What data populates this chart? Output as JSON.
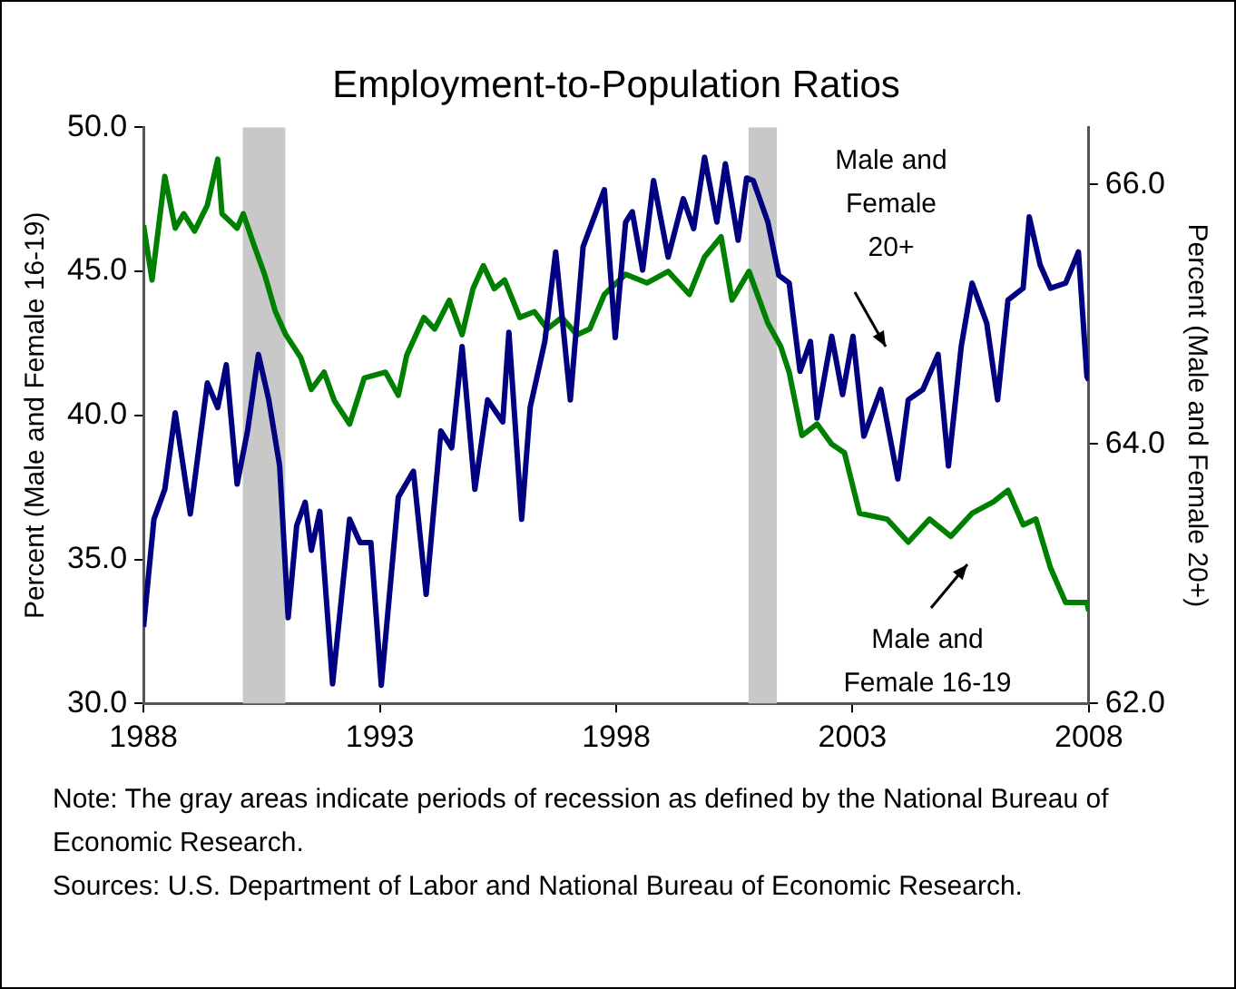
{
  "chart_data": {
    "type": "line",
    "title": "Employment-to-Population Ratios",
    "ylabel": "Percent (Male and Female 16-19)",
    "y2label": "Percent (Male and Female 20+)",
    "xlim": [
      1988,
      2008
    ],
    "xticks": [
      1988,
      1993,
      1998,
      2003,
      2008
    ],
    "ylim": [
      30,
      50
    ],
    "yticks": [
      {
        "value": 30,
        "label": "30.0"
      },
      {
        "value": 35,
        "label": "35.0"
      },
      {
        "value": 40,
        "label": "40.0"
      },
      {
        "value": 45,
        "label": "45.0"
      },
      {
        "value": 50,
        "label": "50.0"
      }
    ],
    "y2lim": [
      62,
      66.44
    ],
    "y2ticks": [
      {
        "value": 62,
        "label": "62.0"
      },
      {
        "value": 64,
        "label": "64.0"
      },
      {
        "value": 66,
        "label": "66.0"
      }
    ],
    "grid": false,
    "legend": false,
    "marker": "none",
    "line_style": "solid",
    "bands": [
      {
        "axis": "x",
        "from": 1990.1,
        "to": 1991.0,
        "color": "#c8c8c8"
      },
      {
        "axis": "x",
        "from": 2000.8,
        "to": 2001.4,
        "color": "#c8c8c8"
      }
    ],
    "series": [
      {
        "name": "Male and\nFemale\n20+",
        "color": "#000080",
        "axis": "y2",
        "x": [
          1988,
          1988.22,
          1988.45,
          1988.67,
          1988.99,
          1989.35,
          1989.57,
          1989.75,
          1989.98,
          1990.2,
          1990.43,
          1990.65,
          1990.88,
          1991.06,
          1991.24,
          1991.42,
          1991.55,
          1991.73,
          1992.0,
          1992.36,
          1992.58,
          1992.81,
          1993.03,
          1993.39,
          1993.71,
          1993.98,
          1994.29,
          1994.52,
          1994.74,
          1995.01,
          1995.28,
          1995.6,
          1995.73,
          1996.0,
          1996.18,
          1996.49,
          1996.72,
          1997.03,
          1997.3,
          1997.75,
          1997.98,
          1998.2,
          1998.34,
          1998.56,
          1998.79,
          1999.1,
          1999.42,
          1999.64,
          1999.87,
          2000.13,
          2000.31,
          2000.58,
          2000.76,
          2000.9,
          2001.21,
          2001.44,
          2001.66,
          2001.89,
          2002.11,
          2002.25,
          2002.56,
          2002.79,
          2003.01,
          2003.24,
          2003.6,
          2003.96,
          2004.18,
          2004.49,
          2004.81,
          2005.03,
          2005.3,
          2005.53,
          2005.84,
          2006.07,
          2006.29,
          2006.61,
          2006.74,
          2006.97,
          2007.19,
          2007.51,
          2007.78,
          2007.96,
          2008.0
        ],
        "values": [
          62.59,
          63.42,
          63.65,
          64.24,
          63.46,
          64.47,
          64.28,
          64.61,
          63.69,
          64.1,
          64.69,
          64.34,
          63.83,
          62.66,
          63.37,
          63.55,
          63.18,
          63.48,
          62.15,
          63.42,
          63.24,
          63.24,
          62.14,
          63.59,
          63.79,
          62.84,
          64.1,
          63.97,
          64.75,
          63.65,
          64.34,
          64.17,
          64.86,
          63.42,
          64.28,
          64.79,
          65.48,
          64.34,
          65.52,
          65.96,
          64.82,
          65.71,
          65.79,
          65.34,
          66.03,
          65.44,
          65.89,
          65.66,
          66.21,
          65.71,
          66.16,
          65.57,
          66.05,
          66.03,
          65.71,
          65.3,
          65.24,
          64.56,
          64.79,
          64.2,
          64.83,
          64.38,
          64.83,
          64.06,
          64.42,
          63.73,
          64.34,
          64.42,
          64.69,
          63.83,
          64.75,
          65.24,
          64.93,
          64.34,
          65.11,
          65.2,
          65.75,
          65.38,
          65.2,
          65.24,
          65.48,
          64.52,
          64.49
        ]
      },
      {
        "name": "Male and\nFemale 16-19",
        "color": "#008000",
        "x": [
          1988.0,
          1988.18,
          1988.45,
          1988.67,
          1988.85,
          1989.08,
          1989.35,
          1989.57,
          1989.66,
          1989.98,
          1990.11,
          1990.34,
          1990.56,
          1990.79,
          1991.01,
          1991.33,
          1991.55,
          1991.82,
          1992.04,
          1992.36,
          1992.67,
          1993.12,
          1993.39,
          1993.57,
          1993.93,
          1994.16,
          1994.47,
          1994.74,
          1994.97,
          1995.19,
          1995.42,
          1995.64,
          1995.96,
          1996.27,
          1996.54,
          1996.85,
          1997.17,
          1997.44,
          1997.75,
          1998.2,
          1998.65,
          1999.1,
          1999.55,
          1999.87,
          2000.22,
          2000.45,
          2000.81,
          2001.21,
          2001.48,
          2001.66,
          2001.93,
          2002.25,
          2002.56,
          2002.83,
          2003.15,
          2003.73,
          2004.18,
          2004.63,
          2005.08,
          2005.53,
          2005.98,
          2006.29,
          2006.61,
          2006.88,
          2007.19,
          2007.51,
          2007.96,
          2008.0
        ],
        "values": [
          46.6,
          44.7,
          48.3,
          46.5,
          47.0,
          46.4,
          47.3,
          48.9,
          47.0,
          46.5,
          47.0,
          45.9,
          44.9,
          43.6,
          42.8,
          42.0,
          40.9,
          41.5,
          40.5,
          39.7,
          41.3,
          41.5,
          40.7,
          42.1,
          43.4,
          43.0,
          44.0,
          42.8,
          44.4,
          45.2,
          44.4,
          44.7,
          43.4,
          43.6,
          43.0,
          43.4,
          42.8,
          43.0,
          44.2,
          44.9,
          44.6,
          45.0,
          44.2,
          45.5,
          46.2,
          44.0,
          45.0,
          43.2,
          42.4,
          41.5,
          39.3,
          39.7,
          39.0,
          38.7,
          36.6,
          36.4,
          35.6,
          36.4,
          35.8,
          36.6,
          37.0,
          37.4,
          36.2,
          36.4,
          34.7,
          33.5,
          33.5,
          33.2
        ]
      }
    ],
    "annotations": [
      "Note: The gray areas indicate periods of recession as defined by the National Bureau of Economic Research.",
      "Sources: U.S. Department of Labor and National Bureau of Economic Research."
    ]
  }
}
